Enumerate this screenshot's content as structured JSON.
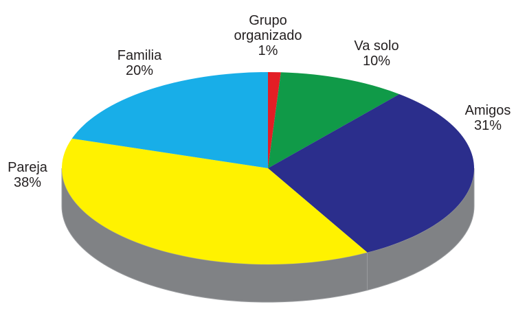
{
  "chart_data": {
    "type": "pie",
    "categories": [
      "Grupo organizado",
      "Va solo",
      "Amigos",
      "Pareja",
      "Familia"
    ],
    "values": [
      1,
      10,
      31,
      38,
      20
    ],
    "value_labels": [
      "1%",
      "10%",
      "31%",
      "38%",
      "20%"
    ],
    "colors": [
      "#e31e25",
      "#109a48",
      "#2b2e8c",
      "#fff200",
      "#18aee8"
    ],
    "side_color": "#808285"
  }
}
